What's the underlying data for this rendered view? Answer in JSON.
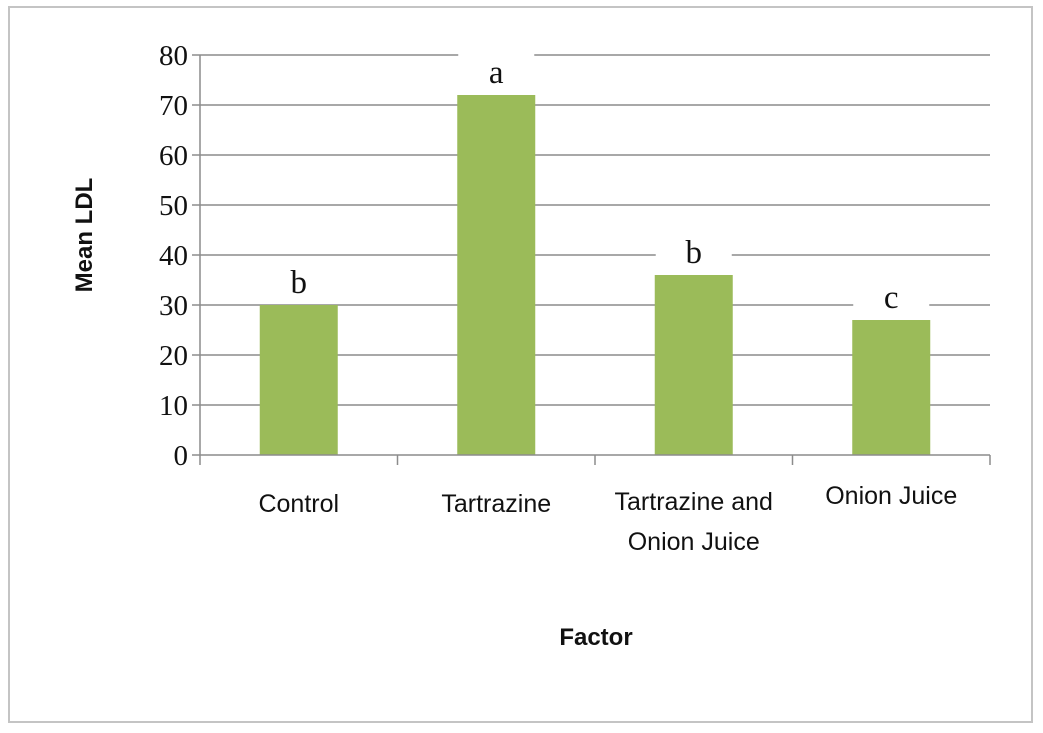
{
  "chart_data": {
    "type": "bar",
    "title": "",
    "xlabel": "Factor",
    "ylabel": "Mean  LDL",
    "categories": [
      [
        "Control"
      ],
      [
        "Tartrazine"
      ],
      [
        "Tartrazine and",
        "Onion Juice"
      ],
      [
        "Onion Juice"
      ]
    ],
    "values": [
      30,
      72,
      36,
      27
    ],
    "significance_letters": [
      "b",
      "a",
      "b",
      "c"
    ],
    "ylim": [
      0,
      80
    ],
    "yticks": [
      "0",
      "10",
      "20",
      "30",
      "40",
      "50",
      "60",
      "70",
      "80"
    ],
    "grid": true,
    "legend": "none",
    "bar_color": "#9bbb59",
    "grid_color": "#8c8c8c",
    "axis_color": "#8c8c8c"
  }
}
